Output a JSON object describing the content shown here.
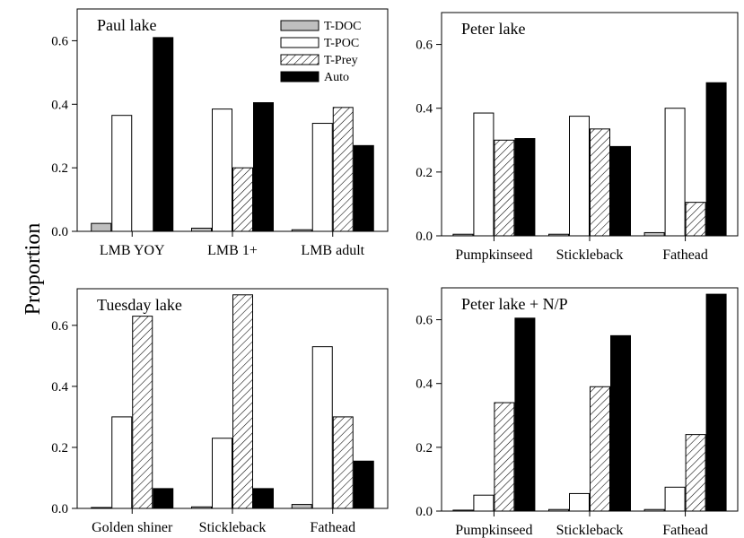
{
  "ylabel": "Proportion",
  "colors": {
    "T-DOC": "#bfbfbf",
    "T-POC": "#ffffff",
    "T-Prey": "hatch",
    "Auto": "#000000"
  },
  "chart_data": [
    {
      "type": "bar",
      "title": "Paul lake",
      "categories": [
        "LMB YOY",
        "LMB 1+",
        "LMB adult"
      ],
      "series": [
        {
          "name": "T-DOC",
          "values": [
            0.025,
            0.01,
            0.005
          ]
        },
        {
          "name": "T-POC",
          "values": [
            0.365,
            0.385,
            0.34
          ]
        },
        {
          "name": "T-Prey",
          "values": [
            0.0,
            0.2,
            0.39
          ]
        },
        {
          "name": "Auto",
          "values": [
            0.61,
            0.405,
            0.27
          ]
        }
      ],
      "yticks": [
        "0.0",
        "0.2",
        "0.4",
        "0.6"
      ],
      "ylim": [
        0,
        0.7
      ],
      "legend": "top-right"
    },
    {
      "type": "bar",
      "title": "Peter lake",
      "categories": [
        "Pumpkinseed",
        "Stickleback",
        "Fathead"
      ],
      "series": [
        {
          "name": "T-DOC",
          "values": [
            0.005,
            0.005,
            0.01
          ]
        },
        {
          "name": "T-POC",
          "values": [
            0.385,
            0.375,
            0.4
          ]
        },
        {
          "name": "T-Prey",
          "values": [
            0.3,
            0.335,
            0.105
          ]
        },
        {
          "name": "Auto",
          "values": [
            0.305,
            0.28,
            0.48
          ]
        }
      ],
      "yticks": [
        "0.0",
        "0.2",
        "0.4",
        "0.6"
      ],
      "ylim": [
        0,
        0.7
      ]
    },
    {
      "type": "bar",
      "title": "Tuesday lake",
      "categories": [
        "Golden shiner",
        "Stickleback",
        "Fathead"
      ],
      "series": [
        {
          "name": "T-DOC",
          "values": [
            0.003,
            0.005,
            0.013
          ]
        },
        {
          "name": "T-POC",
          "values": [
            0.3,
            0.23,
            0.53
          ]
        },
        {
          "name": "T-Prey",
          "values": [
            0.63,
            0.7,
            0.3
          ]
        },
        {
          "name": "Auto",
          "values": [
            0.065,
            0.065,
            0.155
          ]
        }
      ],
      "yticks": [
        "0.0",
        "0.2",
        "0.4",
        "0.6"
      ],
      "ylim": [
        0,
        0.72
      ]
    },
    {
      "type": "bar",
      "title": "Peter lake + N/P",
      "categories": [
        "Pumpkinseed",
        "Stickleback",
        "Fathead"
      ],
      "series": [
        {
          "name": "T-DOC",
          "values": [
            0.003,
            0.005,
            0.005
          ]
        },
        {
          "name": "T-POC",
          "values": [
            0.05,
            0.055,
            0.075
          ]
        },
        {
          "name": "T-Prey",
          "values": [
            0.34,
            0.39,
            0.24
          ]
        },
        {
          "name": "Auto",
          "values": [
            0.605,
            0.55,
            0.68
          ]
        }
      ],
      "yticks": [
        "0.0",
        "0.2",
        "0.4",
        "0.6"
      ],
      "ylim": [
        0,
        0.7
      ]
    }
  ]
}
